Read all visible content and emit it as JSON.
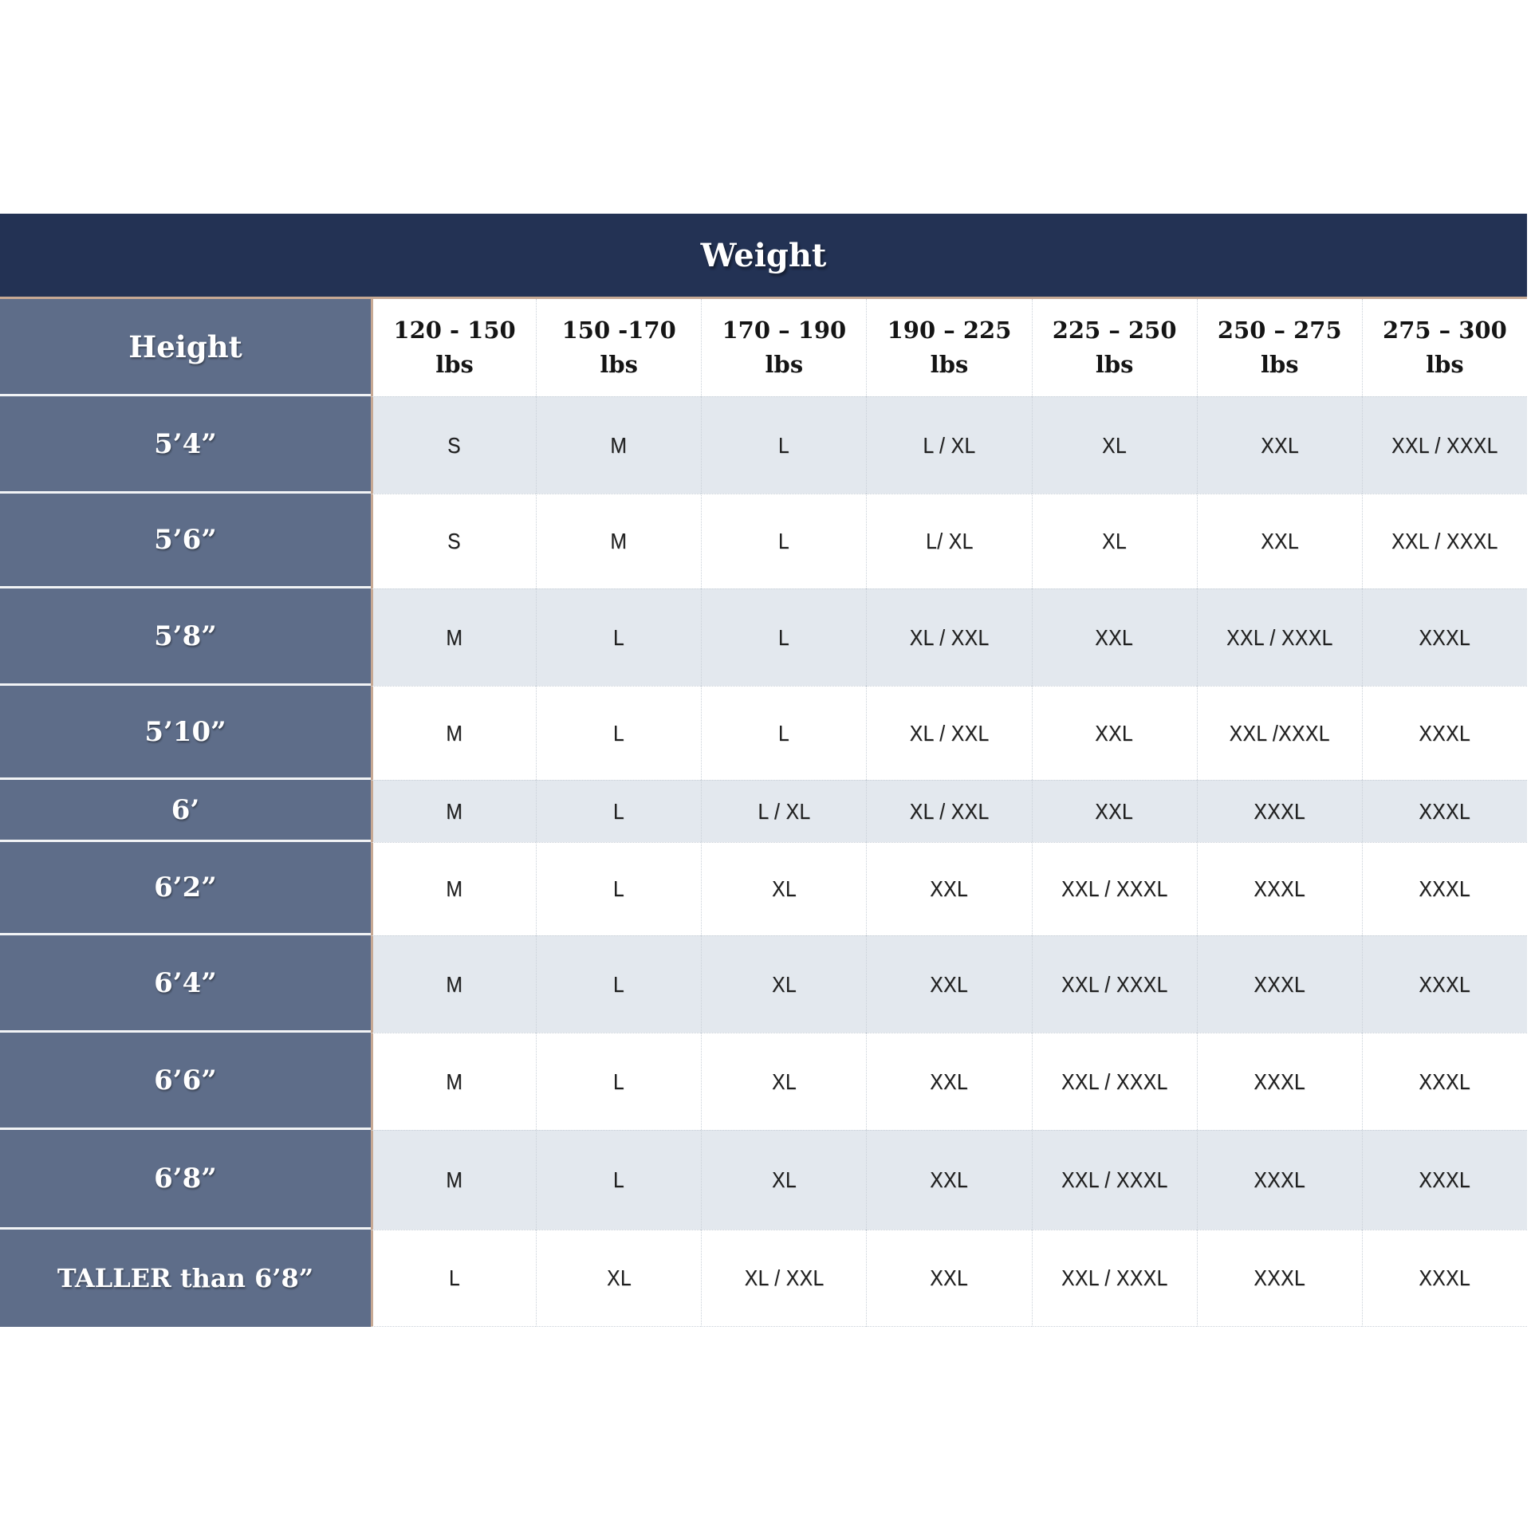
{
  "chart_data": {
    "type": "table",
    "title": "Weight",
    "row_axis_label": "Height",
    "col_headers": [
      {
        "range": "120 - 150",
        "unit": "lbs"
      },
      {
        "range": "150 -170",
        "unit": "lbs"
      },
      {
        "range": "170 – 190",
        "unit": "lbs"
      },
      {
        "range": "190 – 225",
        "unit": "lbs"
      },
      {
        "range": "225 – 250",
        "unit": "lbs"
      },
      {
        "range": "250 – 275",
        "unit": "lbs"
      },
      {
        "range": "275 – 300",
        "unit": "lbs"
      }
    ],
    "rows": [
      {
        "height": "5’4”",
        "sizes": [
          "S",
          "M",
          "L",
          "L / XL",
          "XL",
          "XXL",
          "XXL / XXXL"
        ]
      },
      {
        "height": "5’6”",
        "sizes": [
          "S",
          "M",
          "L",
          "L/ XL",
          "XL",
          "XXL",
          "XXL / XXXL"
        ]
      },
      {
        "height": "5’8”",
        "sizes": [
          "M",
          "L",
          "L",
          "XL / XXL",
          "XXL",
          "XXL / XXXL",
          "XXXL"
        ]
      },
      {
        "height": "5’10”",
        "sizes": [
          "M",
          "L",
          "L",
          "XL / XXL",
          "XXL",
          "XXL /XXXL",
          "XXXL"
        ]
      },
      {
        "height": "6’",
        "sizes": [
          "M",
          "L",
          "L / XL",
          "XL / XXL",
          "XXL",
          "XXXL",
          "XXXL"
        ]
      },
      {
        "height": "6’2”",
        "sizes": [
          "M",
          "L",
          "XL",
          "XXL",
          "XXL / XXXL",
          "XXXL",
          "XXXL"
        ]
      },
      {
        "height": "6’4”",
        "sizes": [
          "M",
          "L",
          "XL",
          "XXL",
          "XXL / XXXL",
          "XXXL",
          "XXXL"
        ]
      },
      {
        "height": "6’6”",
        "sizes": [
          "M",
          "L",
          "XL",
          "XXL",
          "XXL / XXXL",
          "XXXL",
          "XXXL"
        ]
      },
      {
        "height": "6’8”",
        "sizes": [
          "M",
          "L",
          "XL",
          "XXL",
          "XXL / XXXL",
          "XXXL",
          "XXXL"
        ]
      },
      {
        "height": "TALLER than 6’8”",
        "sizes": [
          "L",
          "XL",
          "XL / XXL",
          "XXL",
          "XXL / XXXL",
          "XXXL",
          "XXXL"
        ]
      }
    ],
    "colors": {
      "header_navy": "#233254",
      "height_column_slate": "#5e6d89",
      "row_alt_gray": "#e3e8ee",
      "row_white": "#ffffff",
      "accent_tan_border": "#c7a994",
      "text_dark": "#1f1f1f",
      "text_white": "#ffffff"
    },
    "layout_hints": {
      "grid": "dotted column separators",
      "row_striping": "alternating gray/white starting gray"
    }
  }
}
